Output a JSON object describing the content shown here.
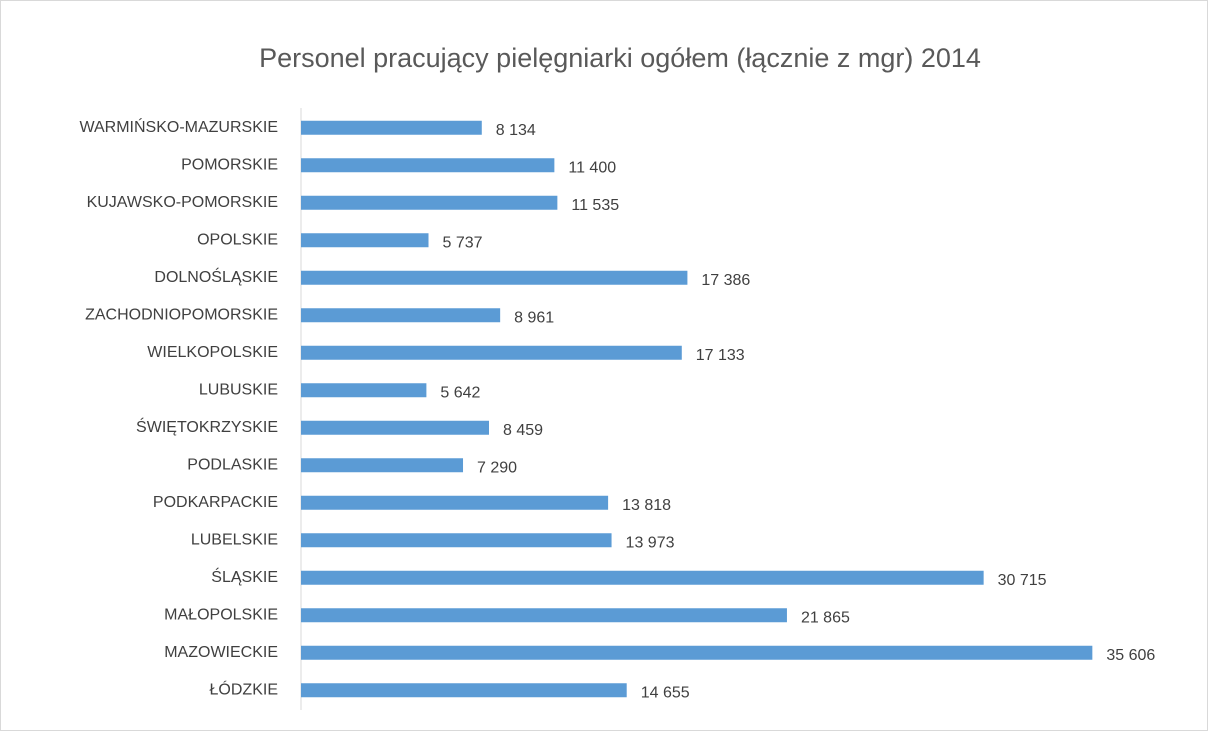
{
  "chart_data": {
    "type": "bar",
    "orientation": "horizontal",
    "title": "Personel pracujący pielęgniarki ogółem (łącznie z mgr) 2014",
    "categories": [
      "WARMIŃSKO-MAZURSKIE",
      "POMORSKIE",
      "KUJAWSKO-POMORSKIE",
      "OPOLSKIE",
      "DOLNOŚLĄSKIE",
      "ZACHODNIOPOMORSKIE",
      "WIELKOPOLSKIE",
      "LUBUSKIE",
      "ŚWIĘTOKRZYSKIE",
      "PODLASKIE",
      "PODKARPACKIE",
      "LUBELSKIE",
      "ŚLĄSKIE",
      "MAŁOPOLSKIE",
      "MAZOWIECKIE",
      "ŁÓDZKIE"
    ],
    "values": [
      8134,
      11400,
      11535,
      5737,
      17386,
      8961,
      17133,
      5642,
      8459,
      7290,
      13818,
      13973,
      30715,
      21865,
      35606,
      14655
    ],
    "value_labels": [
      "8 134",
      "11 400",
      "11 535",
      "5 737",
      "17 386",
      "8 961",
      "17 133",
      "5 642",
      "8 459",
      "7 290",
      "13 818",
      "13 973",
      "30 715",
      "21 865",
      "35 606",
      "14 655"
    ],
    "color": "#5b9bd5",
    "xlim": [
      0,
      40000
    ]
  }
}
